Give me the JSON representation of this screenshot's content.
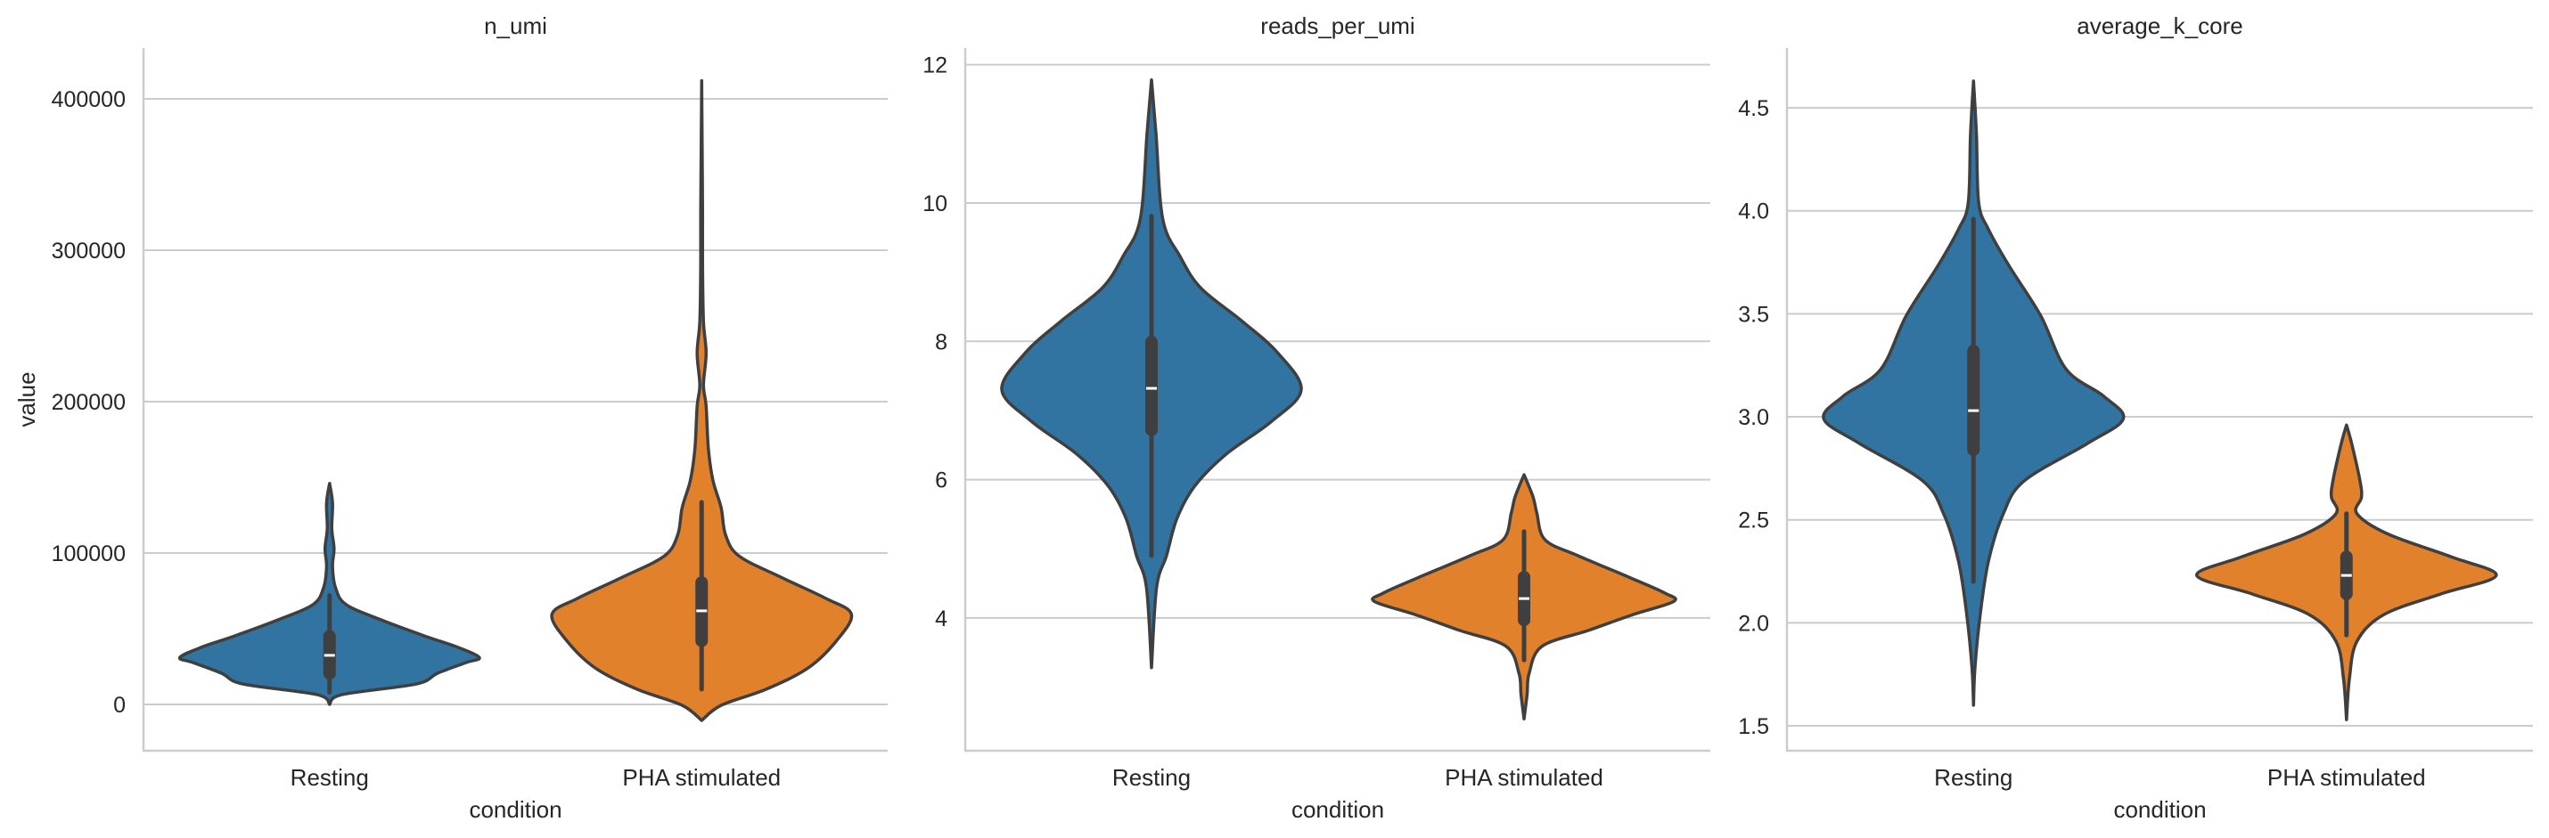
{
  "chart_data": [
    {
      "type": "violin",
      "title": "n_umi",
      "xlabel": "condition",
      "ylabel": "value",
      "categories": [
        "Resting",
        "PHA stimulated"
      ],
      "ylim": [
        -30600,
        433500
      ],
      "yticks": [
        0,
        100000,
        200000,
        300000,
        400000
      ],
      "ytick_labels": [
        "0",
        "100000",
        "200000",
        "300000",
        "400000"
      ],
      "grid": "y",
      "violins": [
        {
          "category": "Resting",
          "color": "#3274a1",
          "kde": [
            [
              0,
              0
            ],
            [
              6500,
              0.085
            ],
            [
              13500,
              0.58
            ],
            [
              20500,
              0.72
            ],
            [
              27600,
              0.91
            ],
            [
              31000,
              1.0
            ],
            [
              38000,
              0.85
            ],
            [
              45000,
              0.64
            ],
            [
              56000,
              0.34
            ],
            [
              66000,
              0.11
            ],
            [
              77000,
              0.04
            ],
            [
              91000,
              0.02
            ],
            [
              103000,
              0.03
            ],
            [
              116000,
              0.015
            ],
            [
              133000,
              0.02
            ],
            [
              146000,
              0
            ]
          ],
          "whisker": [
            8000,
            72000
          ],
          "box": [
            20500,
            45000
          ],
          "median": 32400
        },
        {
          "category": "PHA stimulated",
          "color": "#e1812c",
          "kde": [
            [
              -10600,
              0
            ],
            [
              -600,
              0.13
            ],
            [
              10000,
              0.43
            ],
            [
              24000,
              0.71
            ],
            [
              42000,
              0.9
            ],
            [
              59500,
              1.0
            ],
            [
              70000,
              0.83
            ],
            [
              84000,
              0.53
            ],
            [
              98000,
              0.25
            ],
            [
              112000,
              0.16
            ],
            [
              130000,
              0.13
            ],
            [
              148000,
              0.075
            ],
            [
              169000,
              0.045
            ],
            [
              197000,
              0.03
            ],
            [
              211000,
              0.012
            ],
            [
              232000,
              0.03
            ],
            [
              253000,
              0.012
            ],
            [
              289000,
              0.006
            ],
            [
              324000,
              0.006
            ],
            [
              412000,
              0
            ]
          ],
          "whisker": [
            10000,
            133500
          ],
          "box": [
            42000,
            80500
          ],
          "median": 61800
        }
      ]
    },
    {
      "type": "violin",
      "title": "reads_per_umi",
      "xlabel": "condition",
      "ylabel": "",
      "categories": [
        "Resting",
        "PHA stimulated"
      ],
      "ylim": [
        2.08,
        12.24
      ],
      "yticks": [
        4,
        6,
        8,
        10,
        12
      ],
      "ytick_labels": [
        "4",
        "6",
        "8",
        "10",
        "12"
      ],
      "grid": "y",
      "violins": [
        {
          "category": "Resting",
          "color": "#3274a1",
          "kde": [
            [
              3.28,
              0
            ],
            [
              4.44,
              0.034
            ],
            [
              4.9,
              0.1
            ],
            [
              5.44,
              0.17
            ],
            [
              5.91,
              0.29
            ],
            [
              6.37,
              0.5
            ],
            [
              6.84,
              0.8
            ],
            [
              7.3,
              1.0
            ],
            [
              7.84,
              0.84
            ],
            [
              8.3,
              0.6
            ],
            [
              8.77,
              0.33
            ],
            [
              9.23,
              0.19
            ],
            [
              9.77,
              0.075
            ],
            [
              11.01,
              0.03
            ],
            [
              11.78,
              0
            ]
          ],
          "whisker": [
            4.9,
            9.81
          ],
          "box": [
            6.72,
            7.99
          ],
          "median": 7.32
        },
        {
          "category": "PHA stimulated",
          "color": "#e1812c",
          "kde": [
            [
              2.54,
              0
            ],
            [
              2.89,
              0.02
            ],
            [
              3.2,
              0.034
            ],
            [
              3.59,
              0.12
            ],
            [
              3.82,
              0.43
            ],
            [
              4.05,
              0.73
            ],
            [
              4.24,
              1.0
            ],
            [
              4.36,
              0.94
            ],
            [
              4.59,
              0.7
            ],
            [
              4.9,
              0.36
            ],
            [
              5.13,
              0.14
            ],
            [
              5.52,
              0.085
            ],
            [
              5.75,
              0.06
            ],
            [
              6.07,
              0
            ]
          ],
          "whisker": [
            3.39,
            5.25
          ],
          "box": [
            3.97,
            4.59
          ],
          "median": 4.28
        }
      ]
    },
    {
      "type": "violin",
      "title": "average_k_core",
      "xlabel": "condition",
      "ylabel": "",
      "categories": [
        "Resting",
        "PHA stimulated"
      ],
      "ylim": [
        1.379,
        4.79
      ],
      "yticks": [
        1.5,
        2.0,
        2.5,
        3.0,
        3.5,
        4.0,
        4.5
      ],
      "ytick_labels": [
        "1.5",
        "2.0",
        "2.5",
        "3.0",
        "3.5",
        "4.0",
        "4.5"
      ],
      "grid": "y",
      "violins": [
        {
          "category": "Resting",
          "color": "#3274a1",
          "kde": [
            [
              1.6,
              0
            ],
            [
              1.78,
              0.01
            ],
            [
              2.04,
              0.045
            ],
            [
              2.3,
              0.1
            ],
            [
              2.53,
              0.2
            ],
            [
              2.69,
              0.34
            ],
            [
              2.87,
              0.76
            ],
            [
              2.99,
              1.0
            ],
            [
              3.1,
              0.87
            ],
            [
              3.23,
              0.62
            ],
            [
              3.49,
              0.45
            ],
            [
              3.73,
              0.24
            ],
            [
              3.91,
              0.1
            ],
            [
              4.04,
              0.035
            ],
            [
              4.37,
              0.02
            ],
            [
              4.63,
              0
            ]
          ],
          "whisker": [
            2.2,
            3.96
          ],
          "box": [
            2.84,
            3.32
          ],
          "median": 3.03
        },
        {
          "category": "PHA stimulated",
          "color": "#e1812c",
          "kde": [
            [
              1.53,
              0
            ],
            [
              1.73,
              0.02
            ],
            [
              1.91,
              0.07
            ],
            [
              2.04,
              0.25
            ],
            [
              2.14,
              0.63
            ],
            [
              2.23,
              1.0
            ],
            [
              2.32,
              0.7
            ],
            [
              2.43,
              0.28
            ],
            [
              2.53,
              0.07
            ],
            [
              2.61,
              0.1
            ],
            [
              2.69,
              0.09
            ],
            [
              2.87,
              0.035
            ],
            [
              2.96,
              0
            ]
          ],
          "whisker": [
            1.94,
            2.53
          ],
          "box": [
            2.14,
            2.32
          ],
          "median": 2.23
        }
      ]
    }
  ]
}
